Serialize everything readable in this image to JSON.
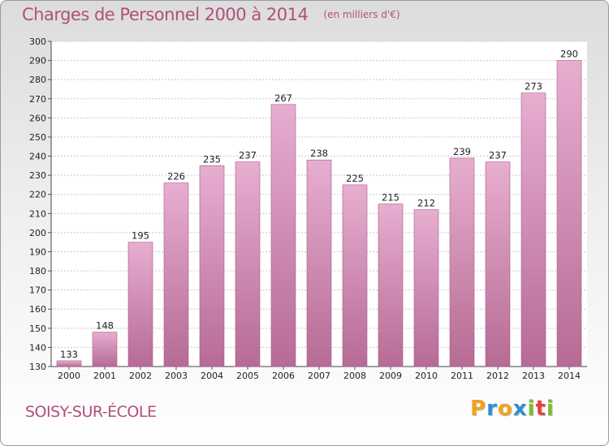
{
  "header": {
    "title": "Charges de Personnel 2000 à 2014",
    "subtitle": "(en milliers d'€)"
  },
  "footer": {
    "commune": "SOISY-SUR-ÉCOLE",
    "logo_text": "Proxiti"
  },
  "colors": {
    "title": "#b0507c",
    "bar_top": "#e7aed0",
    "bar_bottom": "#b66b95",
    "bar_stroke": "#a85a86"
  },
  "chart_data": {
    "type": "bar",
    "title": "Charges de Personnel 2000 à 2014",
    "subtitle": "(en milliers d'€)",
    "xlabel": "",
    "ylabel": "",
    "categories": [
      "2000",
      "2001",
      "2002",
      "2003",
      "2004",
      "2005",
      "2006",
      "2007",
      "2008",
      "2009",
      "2010",
      "2011",
      "2012",
      "2013",
      "2014"
    ],
    "values": [
      133,
      148,
      195,
      226,
      235,
      237,
      267,
      238,
      225,
      215,
      212,
      239,
      237,
      273,
      290
    ],
    "ylim": [
      130,
      300
    ],
    "yticks": [
      130,
      140,
      150,
      160,
      170,
      180,
      190,
      200,
      210,
      220,
      230,
      240,
      250,
      260,
      270,
      280,
      290,
      300
    ],
    "grid": true,
    "legend": "none"
  }
}
